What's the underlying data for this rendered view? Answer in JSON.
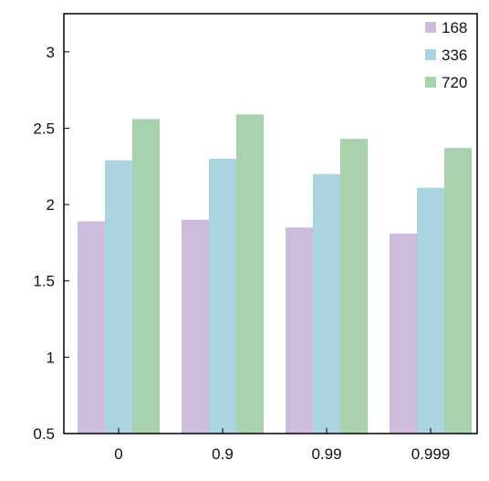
{
  "chart_data": {
    "type": "bar",
    "categories": [
      "0",
      "0.9",
      "0.99",
      "0.999"
    ],
    "series": [
      {
        "name": "168",
        "color": "#cdbcdc",
        "values": [
          1.89,
          1.9,
          1.85,
          1.81
        ]
      },
      {
        "name": "336",
        "color": "#a9d4e0",
        "values": [
          2.29,
          2.3,
          2.2,
          2.11
        ]
      },
      {
        "name": "720",
        "color": "#a8d2ad",
        "values": [
          2.56,
          2.59,
          2.43,
          2.37
        ]
      }
    ],
    "yticks": [
      "0.5",
      "1",
      "1.5",
      "2",
      "2.5",
      "3"
    ],
    "ylim": [
      0.5,
      3.25
    ],
    "legend_position": "top-right",
    "grid": false
  }
}
